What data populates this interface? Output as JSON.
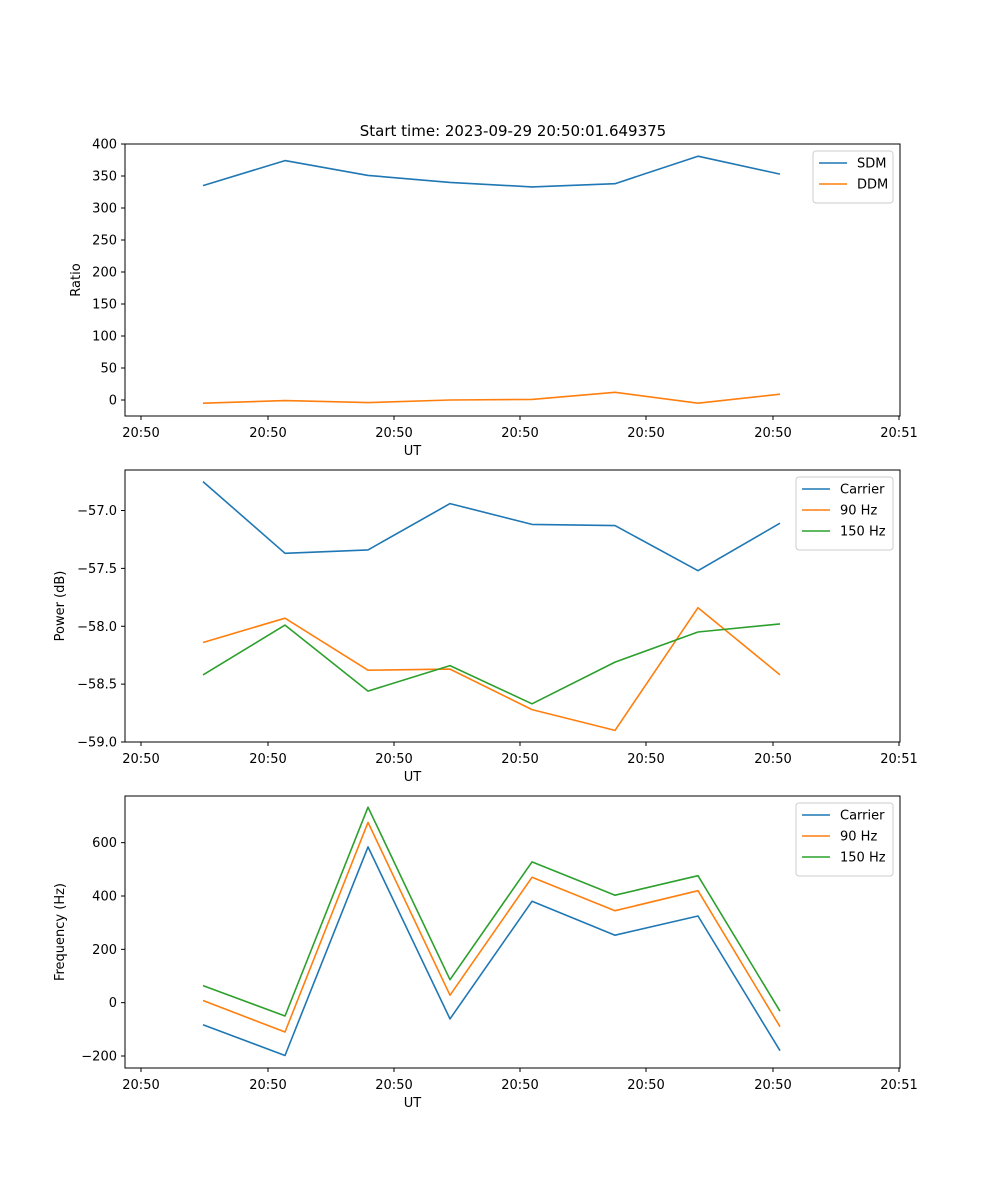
{
  "figure": {
    "title": "Start time: 2023-09-29 20:50:01.649375"
  },
  "chart_data": [
    {
      "type": "line",
      "title": "Start time: 2023-09-29 20:50:01.649375",
      "xlabel": "UT",
      "ylabel": "Ratio",
      "x_tick_labels": [
        "20:50",
        "20:50",
        "20:50",
        "20:50",
        "20:50",
        "20:50",
        "20:51"
      ],
      "y_ticks": [
        0,
        50,
        100,
        150,
        200,
        250,
        300,
        350,
        400
      ],
      "y_tick_labels": [
        "0",
        "50",
        "100",
        "150",
        "200",
        "250",
        "300",
        "350",
        "400"
      ],
      "ylim": [
        -25,
        400
      ],
      "legend_location": "top-right",
      "series": [
        {
          "name": "SDM",
          "color": "#1f77b4",
          "values": [
            335,
            374,
            351,
            340,
            333,
            338,
            381,
            353
          ]
        },
        {
          "name": "DDM",
          "color": "#ff7f0e",
          "values": [
            -5,
            -1,
            -4,
            0,
            1,
            12,
            -5,
            9
          ]
        }
      ]
    },
    {
      "type": "line",
      "title": "",
      "xlabel": "UT",
      "ylabel": "Power (dB)",
      "x_tick_labels": [
        "20:50",
        "20:50",
        "20:50",
        "20:50",
        "20:50",
        "20:50",
        "20:51"
      ],
      "y_ticks": [
        -57.0,
        -57.5,
        -58.0,
        -58.5,
        -59.0
      ],
      "y_tick_labels": [
        "−57.0",
        "−57.5",
        "−58.0",
        "−58.5",
        "−59.0"
      ],
      "ylim": [
        -59.0,
        -56.65
      ],
      "legend_location": "top-right",
      "series": [
        {
          "name": "Carrier",
          "color": "#1f77b4",
          "values": [
            -56.75,
            -57.37,
            -57.34,
            -56.94,
            -57.12,
            -57.13,
            -57.52,
            -57.11
          ]
        },
        {
          "name": "90 Hz",
          "color": "#ff7f0e",
          "values": [
            -58.14,
            -57.93,
            -58.38,
            -58.37,
            -58.72,
            -58.9,
            -57.84,
            -58.42
          ]
        },
        {
          "name": "150 Hz",
          "color": "#2ca02c",
          "values": [
            -58.42,
            -57.99,
            -58.56,
            -58.34,
            -58.67,
            -58.31,
            -58.05,
            -57.98
          ]
        }
      ]
    },
    {
      "type": "line",
      "title": "",
      "xlabel": "UT",
      "ylabel": "Frequency (Hz)",
      "x_tick_labels": [
        "20:50",
        "20:50",
        "20:50",
        "20:50",
        "20:50",
        "20:50",
        "20:51"
      ],
      "y_ticks": [
        -200,
        0,
        200,
        400,
        600
      ],
      "y_tick_labels": [
        "−200",
        "0",
        "200",
        "400",
        "600"
      ],
      "ylim": [
        -245,
        775
      ],
      "legend_location": "top-right",
      "series": [
        {
          "name": "Carrier",
          "color": "#1f77b4",
          "values": [
            -83,
            -198,
            584,
            -61,
            380,
            253,
            325,
            -180
          ]
        },
        {
          "name": "90 Hz",
          "color": "#ff7f0e",
          "values": [
            8,
            -110,
            676,
            28,
            470,
            345,
            420,
            -90
          ]
        },
        {
          "name": "150 Hz",
          "color": "#2ca02c",
          "values": [
            64,
            -50,
            733,
            86,
            528,
            403,
            476,
            -32
          ]
        }
      ]
    }
  ]
}
